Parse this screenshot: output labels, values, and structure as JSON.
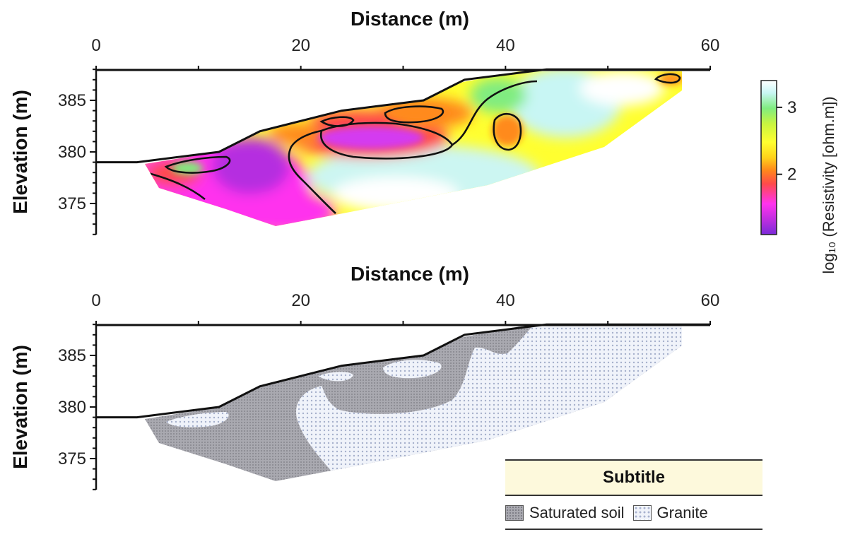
{
  "top_panel": {
    "x_title": "Distance (m)",
    "y_title": "Elevation (m)",
    "x_ticks": [
      0,
      20,
      40,
      60
    ],
    "y_ticks": [
      385,
      380,
      375
    ],
    "colorbar": {
      "title": "log₁₀ (Resistivity [ohm.m])",
      "ticks": [
        3,
        2
      ],
      "range": [
        1.1,
        3.4
      ],
      "colors": [
        "#7a2bd8",
        "#c02ee0",
        "#ff33ee",
        "#ff4a4a",
        "#ff8a1a",
        "#ffd21a",
        "#ffff30",
        "#c8f540",
        "#80ec80",
        "#c8f6f4",
        "#ffffff"
      ]
    }
  },
  "bottom_panel": {
    "x_title": "Distance (m)",
    "y_title": "Elevation (m)",
    "x_ticks": [
      0,
      20,
      40,
      60
    ],
    "y_ticks": [
      385,
      380,
      375
    ]
  },
  "chart_data": {
    "type": "heatmap",
    "xlabel": "Distance (m)",
    "ylabel": "Elevation (m)",
    "xlim": [
      0,
      60
    ],
    "ylim": [
      372,
      388
    ],
    "surface_profile": [
      [
        0,
        379
      ],
      [
        4,
        379
      ],
      [
        12,
        380
      ],
      [
        16,
        382
      ],
      [
        24,
        384
      ],
      [
        32,
        385
      ],
      [
        36,
        387
      ],
      [
        44,
        388
      ],
      [
        60,
        388
      ]
    ],
    "colorbar_label": "log₁₀ (Resistivity [ohm.m])",
    "colorbar_range": [
      1.1,
      3.4
    ],
    "colorbar_ticks": [
      2,
      3
    ]
  },
  "legend": {
    "title": "Subtitle",
    "items": [
      {
        "label": "Saturated soil",
        "pattern": "soil"
      },
      {
        "label": "Granite",
        "pattern": "granite"
      }
    ]
  }
}
